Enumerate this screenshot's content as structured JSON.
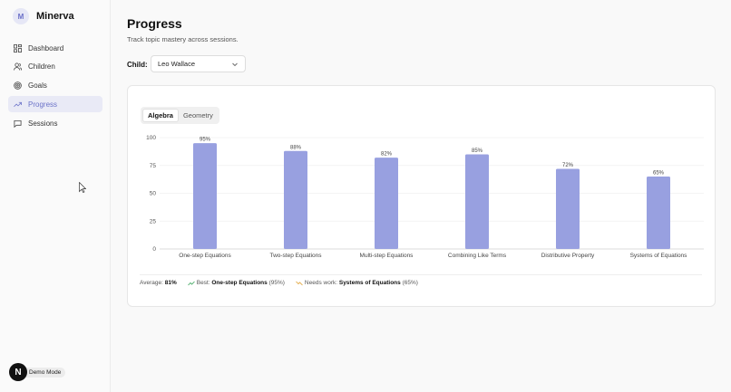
{
  "app": {
    "logo_letter": "M",
    "name": "Minerva"
  },
  "nav": [
    {
      "label": "Dashboard",
      "icon": "grid-icon",
      "active": false
    },
    {
      "label": "Children",
      "icon": "users-icon",
      "active": false
    },
    {
      "label": "Goals",
      "icon": "target-icon",
      "active": false
    },
    {
      "label": "Progress",
      "icon": "trending-up-icon",
      "active": true
    },
    {
      "label": "Sessions",
      "icon": "message-icon",
      "active": false
    }
  ],
  "demo": {
    "badge": "N",
    "label": "Demo Mode"
  },
  "page": {
    "title": "Progress",
    "subtitle": "Track topic mastery across sessions."
  },
  "child_filter": {
    "label": "Child:",
    "selected": "Leo Wallace"
  },
  "tabs": [
    {
      "label": "Algebra",
      "active": true
    },
    {
      "label": "Geometry",
      "active": false
    }
  ],
  "chart_data": {
    "type": "bar",
    "categories": [
      "One-step Equations",
      "Two-step Equations",
      "Multi-step Equations",
      "Combining Like Terms",
      "Distributive Property",
      "Systems of Equations"
    ],
    "values": [
      95,
      88,
      82,
      85,
      72,
      65
    ],
    "value_suffix": "%",
    "yticks": [
      0,
      25,
      50,
      75,
      100
    ],
    "ylim": [
      0,
      100
    ],
    "bar_color": "#98a0e0",
    "grid": true
  },
  "summary": {
    "average_label": "Average:",
    "average_value": "81%",
    "best_label": "Best:",
    "best_topic": "One-step Equations",
    "best_value": "(95%)",
    "needs_label": "Needs work:",
    "needs_topic": "Systems of Equations",
    "needs_value": "(65%)",
    "best_color": "#3ba55c",
    "needs_color": "#e0a030"
  }
}
